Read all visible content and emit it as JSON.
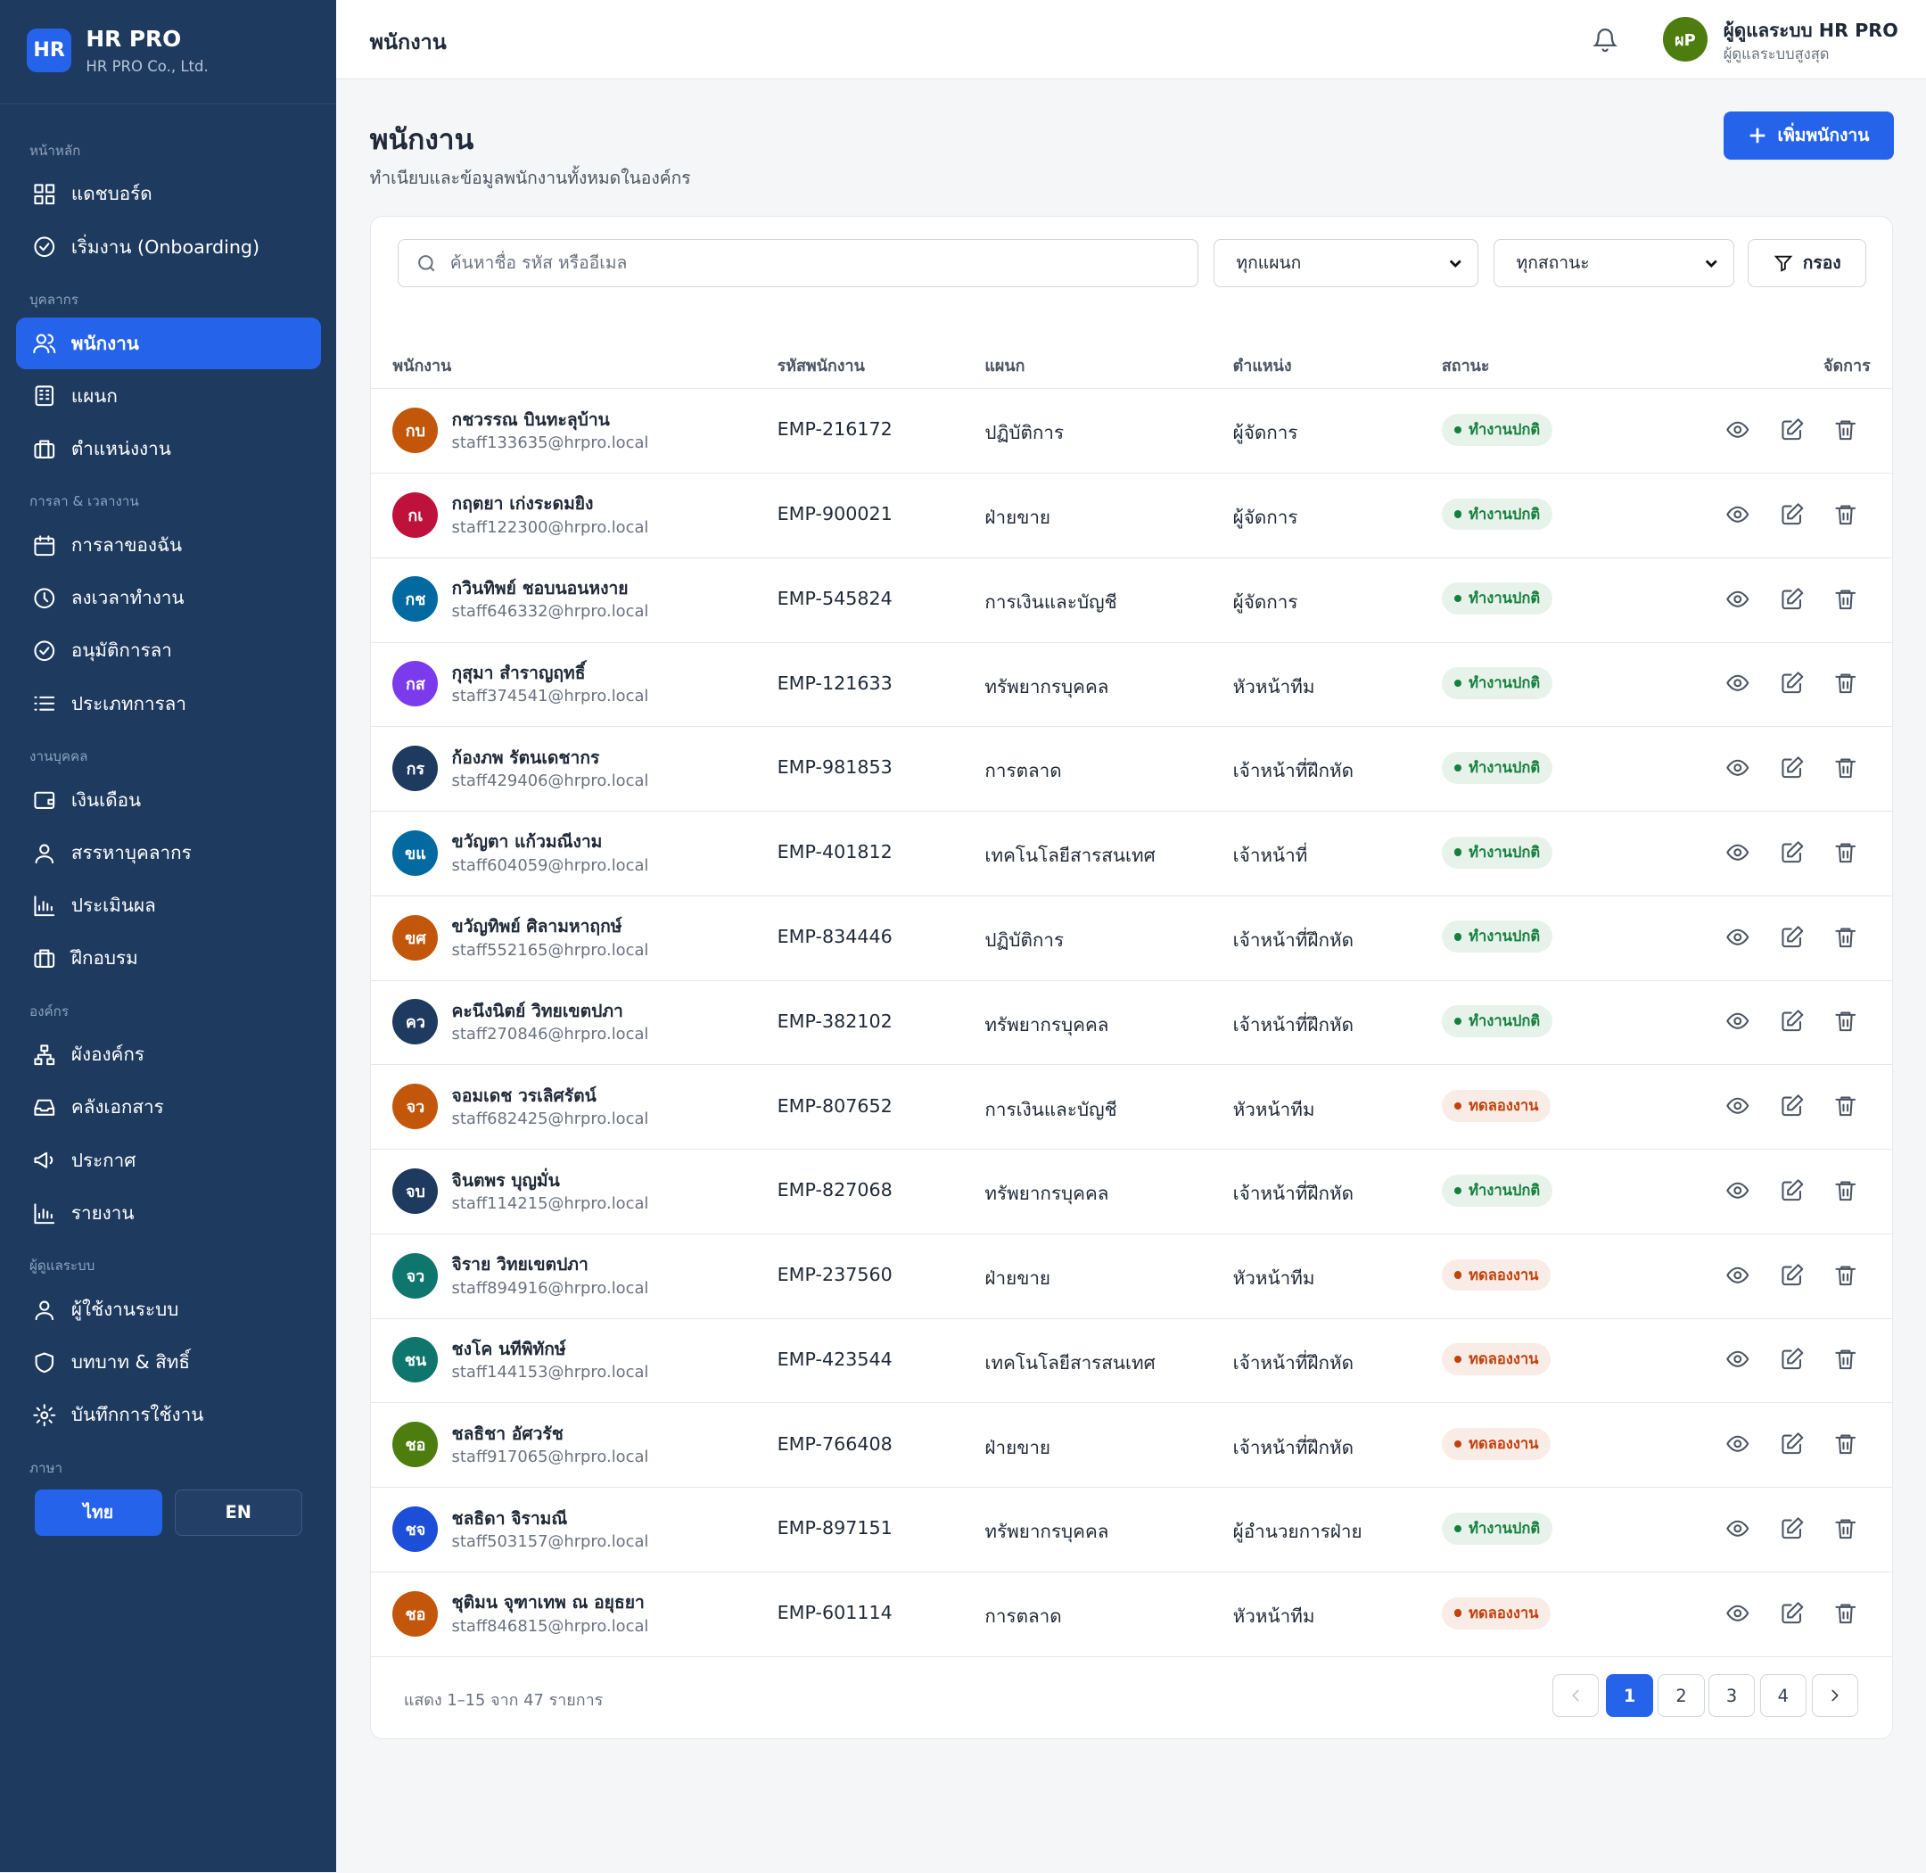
{
  "brand": {
    "logo": "HR",
    "name": "HR PRO",
    "company": "HR PRO Co., Ltd."
  },
  "sidebar": [
    {
      "title": "หน้าหลัก",
      "items": [
        "แดชบอร์ด",
        "เริ่มงาน (Onboarding)"
      ]
    },
    {
      "title": "บุคลากร",
      "items": [
        "พนักงาน",
        "แผนก",
        "ตำแหน่งงาน"
      ],
      "active": 0
    },
    {
      "title": "การลา & เวลางาน",
      "items": [
        "การลาของฉัน",
        "ลงเวลาทำงาน",
        "อนุมัติการลา",
        "ประเภทการลา"
      ]
    },
    {
      "title": "งานบุคคล",
      "items": [
        "เงินเดือน",
        "สรรหาบุคลากร",
        "ประเมินผล",
        "ฝึกอบรม"
      ]
    },
    {
      "title": "องค์กร",
      "items": [
        "ผังองค์กร",
        "คลังเอกสาร",
        "ประกาศ",
        "รายงาน"
      ]
    },
    {
      "title": "ผู้ดูแลระบบ",
      "items": [
        "ผู้ใช้งานระบบ",
        "บทบาท & สิทธิ์",
        "บันทึกการใช้งาน"
      ]
    }
  ],
  "language": {
    "label": "ภาษา",
    "options": [
      "ไทย",
      "EN"
    ]
  },
  "topbar": {
    "title": "พนักงาน",
    "user": {
      "initials": "ผP",
      "name": "ผู้ดูแลระบบ HR PRO",
      "role": "ผู้ดูแลระบบสูงสุด"
    }
  },
  "page": {
    "title": "พนักงาน",
    "subtitle": "ทำเนียบและข้อมูลพนักงานทั้งหมดในองค์กร",
    "add_button": "เพิ่มพนักงาน"
  },
  "filters": {
    "search_placeholder": "ค้นหาชื่อ รหัส หรืออีเมล",
    "department": "ทุกแผนก",
    "status": "ทุกสถานะ",
    "filter_button": "กรอง"
  },
  "table": {
    "columns": [
      "พนักงาน",
      "รหัสพนักงาน",
      "แผนก",
      "ตำแหน่ง",
      "สถานะ",
      "จัดการ"
    ],
    "rows": [
      {
        "initials": "กบ",
        "avatar_color": "#c2570c",
        "name": "กชวรรณ บินทะลุบ้าน",
        "email": "staff133635@hrpro.local",
        "id": "EMP-216172",
        "department": "ปฏิบัติการ",
        "position": "ผู้จัดการ",
        "status": "ทำงานปกติ",
        "status_color": "#15803d"
      },
      {
        "initials": "กเ",
        "avatar_color": "#be123c",
        "name": "กฤตยา เก่งระดมยิง",
        "email": "staff122300@hrpro.local",
        "id": "EMP-900021",
        "department": "ฝ่ายขาย",
        "position": "ผู้จัดการ",
        "status": "ทำงานปกติ",
        "status_color": "#15803d"
      },
      {
        "initials": "กช",
        "avatar_color": "#0369a1",
        "name": "กวินทิพย์ ชอบนอนหงาย",
        "email": "staff646332@hrpro.local",
        "id": "EMP-545824",
        "department": "การเงินและบัญชี",
        "position": "ผู้จัดการ",
        "status": "ทำงานปกติ",
        "status_color": "#15803d"
      },
      {
        "initials": "กส",
        "avatar_color": "#7c3aed",
        "name": "กุสุมา สำราญฤทธิ์",
        "email": "staff374541@hrpro.local",
        "id": "EMP-121633",
        "department": "ทรัพยากรบุคคล",
        "position": "หัวหน้าทีม",
        "status": "ทำงานปกติ",
        "status_color": "#15803d"
      },
      {
        "initials": "กร",
        "avatar_color": "#1e3a5f",
        "name": "ก้องภพ รัตนเดชากร",
        "email": "staff429406@hrpro.local",
        "id": "EMP-981853",
        "department": "การตลาด",
        "position": "เจ้าหน้าที่ฝึกหัด",
        "status": "ทำงานปกติ",
        "status_color": "#15803d"
      },
      {
        "initials": "ขแ",
        "avatar_color": "#0369a1",
        "name": "ขวัญตา แก้วมณีงาม",
        "email": "staff604059@hrpro.local",
        "id": "EMP-401812",
        "department": "เทคโนโลยีสารสนเทศ",
        "position": "เจ้าหน้าที่",
        "status": "ทำงานปกติ",
        "status_color": "#15803d"
      },
      {
        "initials": "ขศ",
        "avatar_color": "#c2570c",
        "name": "ขวัญทิพย์ ศิลามหาฤกษ์",
        "email": "staff552165@hrpro.local",
        "id": "EMP-834446",
        "department": "ปฏิบัติการ",
        "position": "เจ้าหน้าที่ฝึกหัด",
        "status": "ทำงานปกติ",
        "status_color": "#15803d"
      },
      {
        "initials": "คว",
        "avatar_color": "#1e3a5f",
        "name": "คะนึงนิตย์ วิทยเขตปภา",
        "email": "staff270846@hrpro.local",
        "id": "EMP-382102",
        "department": "ทรัพยากรบุคคล",
        "position": "เจ้าหน้าที่ฝึกหัด",
        "status": "ทำงานปกติ",
        "status_color": "#15803d"
      },
      {
        "initials": "จว",
        "avatar_color": "#c2570c",
        "name": "จอมเดช วรเลิศรัตน์",
        "email": "staff682425@hrpro.local",
        "id": "EMP-807652",
        "department": "การเงินและบัญชี",
        "position": "หัวหน้าทีม",
        "status": "ทดลองงาน",
        "status_color": "#c2410c"
      },
      {
        "initials": "จบ",
        "avatar_color": "#1e3a5f",
        "name": "จินตพร บุญมั่น",
        "email": "staff114215@hrpro.local",
        "id": "EMP-827068",
        "department": "ทรัพยากรบุคคล",
        "position": "เจ้าหน้าที่ฝึกหัด",
        "status": "ทำงานปกติ",
        "status_color": "#15803d"
      },
      {
        "initials": "จว",
        "avatar_color": "#0f766e",
        "name": "จิราย วิทยเขตปภา",
        "email": "staff894916@hrpro.local",
        "id": "EMP-237560",
        "department": "ฝ่ายขาย",
        "position": "หัวหน้าทีม",
        "status": "ทดลองงาน",
        "status_color": "#c2410c"
      },
      {
        "initials": "ชน",
        "avatar_color": "#0f766e",
        "name": "ชงโค นทีพิทักษ์",
        "email": "staff144153@hrpro.local",
        "id": "EMP-423544",
        "department": "เทคโนโลยีสารสนเทศ",
        "position": "เจ้าหน้าที่ฝึกหัด",
        "status": "ทดลองงาน",
        "status_color": "#c2410c"
      },
      {
        "initials": "ชอ",
        "avatar_color": "#4d7c0f",
        "name": "ชลธิชา อัศวรัช",
        "email": "staff917065@hrpro.local",
        "id": "EMP-766408",
        "department": "ฝ่ายขาย",
        "position": "เจ้าหน้าที่ฝึกหัด",
        "status": "ทดลองงาน",
        "status_color": "#c2410c"
      },
      {
        "initials": "ชจ",
        "avatar_color": "#1d4ed8",
        "name": "ชลธิดา จิรามณี",
        "email": "staff503157@hrpro.local",
        "id": "EMP-897151",
        "department": "ทรัพยากรบุคคล",
        "position": "ผู้อำนวยการฝ่าย",
        "status": "ทำงานปกติ",
        "status_color": "#15803d"
      },
      {
        "initials": "ชอ",
        "avatar_color": "#c2570c",
        "name": "ชุติมน จุฑาเทพ ณ อยุธยา",
        "email": "staff846815@hrpro.local",
        "id": "EMP-601114",
        "department": "การตลาด",
        "position": "หัวหน้าทีม",
        "status": "ทดลองงาน",
        "status_color": "#c2410c"
      }
    ]
  },
  "pagination": {
    "summary": "แสดง 1–15 จาก 47 รายการ",
    "pages": [
      1,
      2,
      3,
      4
    ],
    "current": 0
  }
}
